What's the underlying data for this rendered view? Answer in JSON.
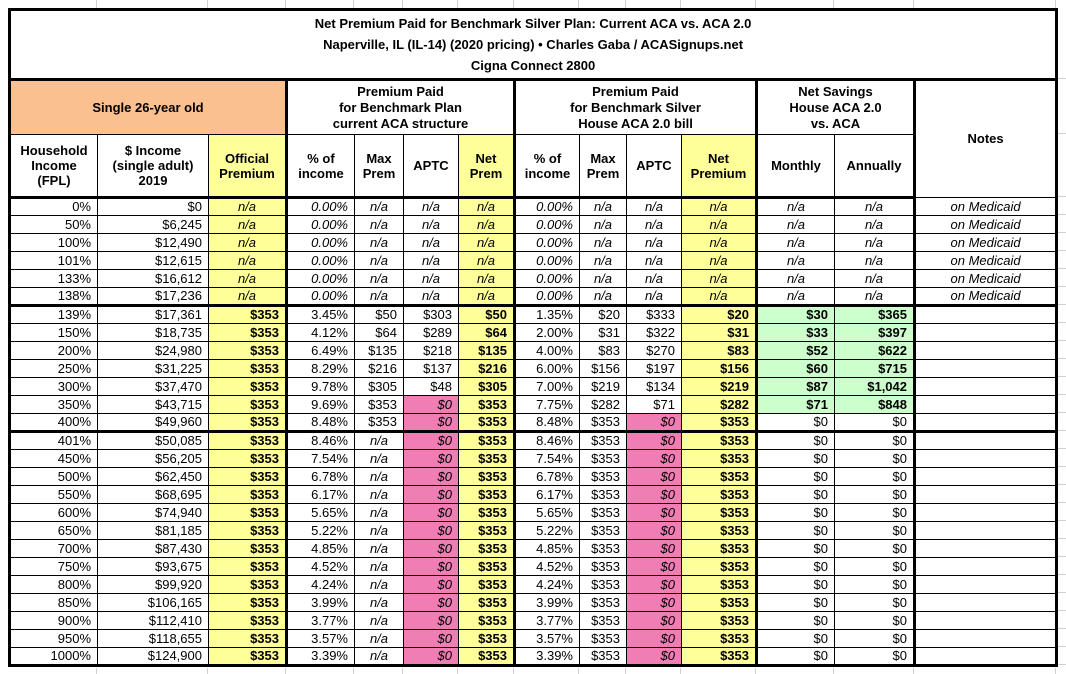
{
  "header": {
    "title_line1": "Net Premium Paid for Benchmark Silver Plan: Current ACA vs. ACA 2.0",
    "title_line2": "Naperville, IL (IL-14) (2020 pricing) • Charles Gaba / ACASignups.net",
    "title_line3": "Cigna Connect 2800"
  },
  "groups": {
    "subject": "Single 26-year old",
    "current_aca": "Premium Paid\nfor Benchmark Plan\ncurrent ACA structure",
    "house_aca2": "Premium Paid\nfor Benchmark Silver\nHouse ACA 2.0 bill",
    "net_savings": "Net Savings\nHouse ACA 2.0\nvs. ACA"
  },
  "colors": {
    "header_orange": "#FAC090",
    "highlight_yellow": "#FFFF99",
    "aptc_pink": "#F07EB4",
    "savings_green": "#CCFFCC",
    "gridline_grey": "#D0D0D0"
  },
  "chart_data": {
    "type": "table",
    "title": "Net Premium Paid for Benchmark Silver Plan: Current ACA vs. ACA 2.0",
    "subtitle": "Naperville, IL (IL-14) (2020 pricing) • Charles Gaba / ACASignups.net",
    "plan": "Cigna Connect 2800",
    "columns": [
      "Household\nIncome\n(FPL)",
      "$ Income\n(single adult)\n2019",
      "Official\nPremium",
      "% of\nincome",
      "Max\nPrem",
      "APTC",
      "Net\nPrem",
      "% of\nincome",
      "Max\nPrem",
      "APTC",
      "Net\nPremium",
      "Monthly",
      "Annually",
      "Notes"
    ],
    "rows": [
      {
        "fpl": "0%",
        "income": "$0",
        "official": "n/a",
        "l_pct": "0.00%",
        "l_max": "n/a",
        "l_aptc": "n/a",
        "l_net": "n/a",
        "r_pct": "0.00%",
        "r_max": "n/a",
        "r_aptc": "n/a",
        "r_net": "n/a",
        "monthly": "n/a",
        "annually": "n/a",
        "note": "on Medicaid"
      },
      {
        "fpl": "50%",
        "income": "$6,245",
        "official": "n/a",
        "l_pct": "0.00%",
        "l_max": "n/a",
        "l_aptc": "n/a",
        "l_net": "n/a",
        "r_pct": "0.00%",
        "r_max": "n/a",
        "r_aptc": "n/a",
        "r_net": "n/a",
        "monthly": "n/a",
        "annually": "n/a",
        "note": "on Medicaid"
      },
      {
        "fpl": "100%",
        "income": "$12,490",
        "official": "n/a",
        "l_pct": "0.00%",
        "l_max": "n/a",
        "l_aptc": "n/a",
        "l_net": "n/a",
        "r_pct": "0.00%",
        "r_max": "n/a",
        "r_aptc": "n/a",
        "r_net": "n/a",
        "monthly": "n/a",
        "annually": "n/a",
        "note": "on Medicaid"
      },
      {
        "fpl": "101%",
        "income": "$12,615",
        "official": "n/a",
        "l_pct": "0.00%",
        "l_max": "n/a",
        "l_aptc": "n/a",
        "l_net": "n/a",
        "r_pct": "0.00%",
        "r_max": "n/a",
        "r_aptc": "n/a",
        "r_net": "n/a",
        "monthly": "n/a",
        "annually": "n/a",
        "note": "on Medicaid"
      },
      {
        "fpl": "133%",
        "income": "$16,612",
        "official": "n/a",
        "l_pct": "0.00%",
        "l_max": "n/a",
        "l_aptc": "n/a",
        "l_net": "n/a",
        "r_pct": "0.00%",
        "r_max": "n/a",
        "r_aptc": "n/a",
        "r_net": "n/a",
        "monthly": "n/a",
        "annually": "n/a",
        "note": "on Medicaid"
      },
      {
        "fpl": "138%",
        "income": "$17,236",
        "official": "n/a",
        "l_pct": "0.00%",
        "l_max": "n/a",
        "l_aptc": "n/a",
        "l_net": "n/a",
        "r_pct": "0.00%",
        "r_max": "n/a",
        "r_aptc": "n/a",
        "r_net": "n/a",
        "monthly": "n/a",
        "annually": "n/a",
        "note": "on Medicaid"
      },
      {
        "fpl": "139%",
        "income": "$17,361",
        "official": "$353",
        "l_pct": "3.45%",
        "l_max": "$50",
        "l_aptc": "$303",
        "l_net": "$50",
        "r_pct": "1.35%",
        "r_max": "$20",
        "r_aptc": "$333",
        "r_net": "$20",
        "monthly": "$30",
        "annually": "$365",
        "note": ""
      },
      {
        "fpl": "150%",
        "income": "$18,735",
        "official": "$353",
        "l_pct": "4.12%",
        "l_max": "$64",
        "l_aptc": "$289",
        "l_net": "$64",
        "r_pct": "2.00%",
        "r_max": "$31",
        "r_aptc": "$322",
        "r_net": "$31",
        "monthly": "$33",
        "annually": "$397",
        "note": ""
      },
      {
        "fpl": "200%",
        "income": "$24,980",
        "official": "$353",
        "l_pct": "6.49%",
        "l_max": "$135",
        "l_aptc": "$218",
        "l_net": "$135",
        "r_pct": "4.00%",
        "r_max": "$83",
        "r_aptc": "$270",
        "r_net": "$83",
        "monthly": "$52",
        "annually": "$622",
        "note": ""
      },
      {
        "fpl": "250%",
        "income": "$31,225",
        "official": "$353",
        "l_pct": "8.29%",
        "l_max": "$216",
        "l_aptc": "$137",
        "l_net": "$216",
        "r_pct": "6.00%",
        "r_max": "$156",
        "r_aptc": "$197",
        "r_net": "$156",
        "monthly": "$60",
        "annually": "$715",
        "note": ""
      },
      {
        "fpl": "300%",
        "income": "$37,470",
        "official": "$353",
        "l_pct": "9.78%",
        "l_max": "$305",
        "l_aptc": "$48",
        "l_net": "$305",
        "r_pct": "7.00%",
        "r_max": "$219",
        "r_aptc": "$134",
        "r_net": "$219",
        "monthly": "$87",
        "annually": "$1,042",
        "note": ""
      },
      {
        "fpl": "350%",
        "income": "$43,715",
        "official": "$353",
        "l_pct": "9.69%",
        "l_max": "$353",
        "l_aptc": "$0",
        "l_net": "$353",
        "r_pct": "7.75%",
        "r_max": "$282",
        "r_aptc": "$71",
        "r_net": "$282",
        "monthly": "$71",
        "annually": "$848",
        "note": ""
      },
      {
        "fpl": "400%",
        "income": "$49,960",
        "official": "$353",
        "l_pct": "8.48%",
        "l_max": "$353",
        "l_aptc": "$0",
        "l_net": "$353",
        "r_pct": "8.48%",
        "r_max": "$353",
        "r_aptc": "$0",
        "r_net": "$353",
        "monthly": "$0",
        "annually": "$0",
        "note": ""
      },
      {
        "fpl": "401%",
        "income": "$50,085",
        "official": "$353",
        "l_pct": "8.46%",
        "l_max": "n/a",
        "l_aptc": "$0",
        "l_net": "$353",
        "r_pct": "8.46%",
        "r_max": "$353",
        "r_aptc": "$0",
        "r_net": "$353",
        "monthly": "$0",
        "annually": "$0",
        "note": ""
      },
      {
        "fpl": "450%",
        "income": "$56,205",
        "official": "$353",
        "l_pct": "7.54%",
        "l_max": "n/a",
        "l_aptc": "$0",
        "l_net": "$353",
        "r_pct": "7.54%",
        "r_max": "$353",
        "r_aptc": "$0",
        "r_net": "$353",
        "monthly": "$0",
        "annually": "$0",
        "note": ""
      },
      {
        "fpl": "500%",
        "income": "$62,450",
        "official": "$353",
        "l_pct": "6.78%",
        "l_max": "n/a",
        "l_aptc": "$0",
        "l_net": "$353",
        "r_pct": "6.78%",
        "r_max": "$353",
        "r_aptc": "$0",
        "r_net": "$353",
        "monthly": "$0",
        "annually": "$0",
        "note": ""
      },
      {
        "fpl": "550%",
        "income": "$68,695",
        "official": "$353",
        "l_pct": "6.17%",
        "l_max": "n/a",
        "l_aptc": "$0",
        "l_net": "$353",
        "r_pct": "6.17%",
        "r_max": "$353",
        "r_aptc": "$0",
        "r_net": "$353",
        "monthly": "$0",
        "annually": "$0",
        "note": ""
      },
      {
        "fpl": "600%",
        "income": "$74,940",
        "official": "$353",
        "l_pct": "5.65%",
        "l_max": "n/a",
        "l_aptc": "$0",
        "l_net": "$353",
        "r_pct": "5.65%",
        "r_max": "$353",
        "r_aptc": "$0",
        "r_net": "$353",
        "monthly": "$0",
        "annually": "$0",
        "note": ""
      },
      {
        "fpl": "650%",
        "income": "$81,185",
        "official": "$353",
        "l_pct": "5.22%",
        "l_max": "n/a",
        "l_aptc": "$0",
        "l_net": "$353",
        "r_pct": "5.22%",
        "r_max": "$353",
        "r_aptc": "$0",
        "r_net": "$353",
        "monthly": "$0",
        "annually": "$0",
        "note": ""
      },
      {
        "fpl": "700%",
        "income": "$87,430",
        "official": "$353",
        "l_pct": "4.85%",
        "l_max": "n/a",
        "l_aptc": "$0",
        "l_net": "$353",
        "r_pct": "4.85%",
        "r_max": "$353",
        "r_aptc": "$0",
        "r_net": "$353",
        "monthly": "$0",
        "annually": "$0",
        "note": ""
      },
      {
        "fpl": "750%",
        "income": "$93,675",
        "official": "$353",
        "l_pct": "4.52%",
        "l_max": "n/a",
        "l_aptc": "$0",
        "l_net": "$353",
        "r_pct": "4.52%",
        "r_max": "$353",
        "r_aptc": "$0",
        "r_net": "$353",
        "monthly": "$0",
        "annually": "$0",
        "note": ""
      },
      {
        "fpl": "800%",
        "income": "$99,920",
        "official": "$353",
        "l_pct": "4.24%",
        "l_max": "n/a",
        "l_aptc": "$0",
        "l_net": "$353",
        "r_pct": "4.24%",
        "r_max": "$353",
        "r_aptc": "$0",
        "r_net": "$353",
        "monthly": "$0",
        "annually": "$0",
        "note": ""
      },
      {
        "fpl": "850%",
        "income": "$106,165",
        "official": "$353",
        "l_pct": "3.99%",
        "l_max": "n/a",
        "l_aptc": "$0",
        "l_net": "$353",
        "r_pct": "3.99%",
        "r_max": "$353",
        "r_aptc": "$0",
        "r_net": "$353",
        "monthly": "$0",
        "annually": "$0",
        "note": ""
      },
      {
        "fpl": "900%",
        "income": "$112,410",
        "official": "$353",
        "l_pct": "3.77%",
        "l_max": "n/a",
        "l_aptc": "$0",
        "l_net": "$353",
        "r_pct": "3.77%",
        "r_max": "$353",
        "r_aptc": "$0",
        "r_net": "$353",
        "monthly": "$0",
        "annually": "$0",
        "note": ""
      },
      {
        "fpl": "950%",
        "income": "$118,655",
        "official": "$353",
        "l_pct": "3.57%",
        "l_max": "n/a",
        "l_aptc": "$0",
        "l_net": "$353",
        "r_pct": "3.57%",
        "r_max": "$353",
        "r_aptc": "$0",
        "r_net": "$353",
        "monthly": "$0",
        "annually": "$0",
        "note": ""
      },
      {
        "fpl": "1000%",
        "income": "$124,900",
        "official": "$353",
        "l_pct": "3.39%",
        "l_max": "n/a",
        "l_aptc": "$0",
        "l_net": "$353",
        "r_pct": "3.39%",
        "r_max": "$353",
        "r_aptc": "$0",
        "r_net": "$353",
        "monthly": "$0",
        "annually": "$0",
        "note": ""
      }
    ]
  }
}
